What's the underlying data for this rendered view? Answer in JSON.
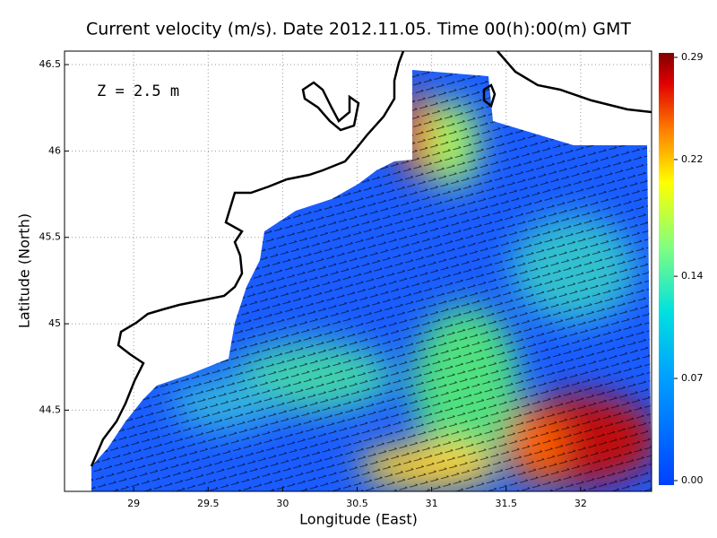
{
  "chart_data": {
    "type": "map",
    "title": "Current velocity (m/s). Date 2012.11.05. Time 00(h):00(m) GMT",
    "annotation": "Z = 2.5 m",
    "x_label": "Longitude (East)",
    "y_label": "Latitude (North)",
    "xlim": [
      28.536,
      32.476
    ],
    "ylim": [
      44.03,
      46.578
    ],
    "xticks": [
      29,
      29.5,
      30,
      30.5,
      31,
      31.5,
      32
    ],
    "yticks": [
      44.5,
      45,
      45.5,
      46,
      46.5
    ],
    "grid": true,
    "colorbar_lim": [
      0,
      0.29
    ],
    "colorbar_ticks": [
      {
        "value": 0,
        "label": "0.00"
      },
      0.07,
      0.14,
      0.22,
      0.29
    ]
  }
}
